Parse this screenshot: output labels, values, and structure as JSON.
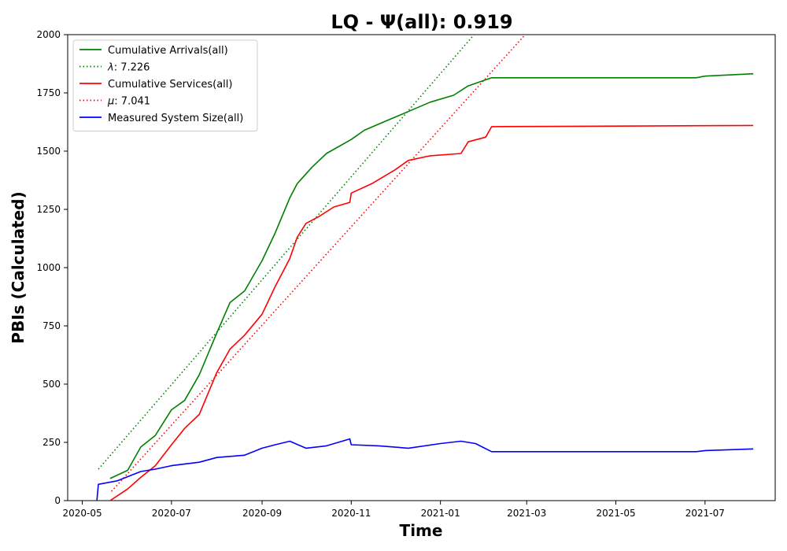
{
  "chart_data": {
    "type": "line",
    "title": "LQ -  Ψ(all): 0.919",
    "xlabel": "Time",
    "ylabel": "PBIs (Calculated)",
    "xlim": [
      "2020-04-21",
      "2021-08-18"
    ],
    "ylim": [
      0,
      2000
    ],
    "xticks": [
      "2020-05",
      "2020-07",
      "2020-09",
      "2020-11",
      "2021-01",
      "2021-03",
      "2021-05",
      "2021-07"
    ],
    "xtick_dates": [
      "2020-05-01",
      "2020-07-01",
      "2020-09-01",
      "2020-11-01",
      "2021-01-01",
      "2021-03-01",
      "2021-05-01",
      "2021-07-01"
    ],
    "yticks": [
      0,
      250,
      500,
      750,
      1000,
      1250,
      1500,
      1750,
      2000
    ],
    "grid": false,
    "legend_position": "upper-left",
    "series": [
      {
        "name": "Cumulative Arrivals(all)",
        "color": "#008000",
        "style": "solid",
        "points": [
          [
            "2020-05-20",
            95
          ],
          [
            "2020-06-01",
            130
          ],
          [
            "2020-06-10",
            230
          ],
          [
            "2020-06-20",
            280
          ],
          [
            "2020-07-01",
            390
          ],
          [
            "2020-07-10",
            430
          ],
          [
            "2020-07-20",
            540
          ],
          [
            "2020-08-01",
            720
          ],
          [
            "2020-08-10",
            850
          ],
          [
            "2020-08-20",
            900
          ],
          [
            "2020-09-01",
            1030
          ],
          [
            "2020-09-10",
            1150
          ],
          [
            "2020-09-20",
            1300
          ],
          [
            "2020-09-25",
            1360
          ],
          [
            "2020-10-05",
            1430
          ],
          [
            "2020-10-15",
            1490
          ],
          [
            "2020-11-01",
            1550
          ],
          [
            "2020-11-10",
            1590
          ],
          [
            "2020-11-25",
            1630
          ],
          [
            "2020-12-10",
            1670
          ],
          [
            "2020-12-25",
            1710
          ],
          [
            "2021-01-10",
            1740
          ],
          [
            "2021-01-20",
            1780
          ],
          [
            "2021-02-05",
            1815
          ],
          [
            "2021-06-25",
            1815
          ],
          [
            "2021-07-01",
            1822
          ],
          [
            "2021-08-03",
            1832
          ]
        ]
      },
      {
        "name": "λ: 7.226",
        "label_prefix": "λ",
        "label_value": ": 7.226",
        "color": "#008000",
        "style": "dotted",
        "points": [
          [
            "2020-05-12",
            135
          ],
          [
            "2021-01-24",
            2000
          ]
        ]
      },
      {
        "name": "Cumulative Services(all)",
        "color": "#ff0000",
        "style": "solid",
        "points": [
          [
            "2020-05-20",
            0
          ],
          [
            "2020-06-01",
            50
          ],
          [
            "2020-06-10",
            100
          ],
          [
            "2020-06-20",
            150
          ],
          [
            "2020-07-01",
            240
          ],
          [
            "2020-07-10",
            310
          ],
          [
            "2020-07-20",
            370
          ],
          [
            "2020-08-01",
            550
          ],
          [
            "2020-08-10",
            650
          ],
          [
            "2020-08-20",
            710
          ],
          [
            "2020-09-01",
            800
          ],
          [
            "2020-09-10",
            920
          ],
          [
            "2020-09-20",
            1040
          ],
          [
            "2020-09-25",
            1130
          ],
          [
            "2020-10-01",
            1190
          ],
          [
            "2020-10-10",
            1220
          ],
          [
            "2020-10-20",
            1260
          ],
          [
            "2020-10-31",
            1280
          ],
          [
            "2020-11-01",
            1320
          ],
          [
            "2020-11-15",
            1360
          ],
          [
            "2020-12-01",
            1420
          ],
          [
            "2020-12-10",
            1460
          ],
          [
            "2020-12-25",
            1480
          ],
          [
            "2021-01-15",
            1490
          ],
          [
            "2021-01-20",
            1540
          ],
          [
            "2021-02-01",
            1560
          ],
          [
            "2021-02-05",
            1605
          ],
          [
            "2021-08-03",
            1610
          ]
        ]
      },
      {
        "name": "μ: 7.041",
        "label_prefix": "μ",
        "label_value": ": 7.041",
        "color": "#ff0000",
        "style": "dotted",
        "points": [
          [
            "2020-05-21",
            40
          ],
          [
            "2021-02-28",
            2000
          ]
        ]
      },
      {
        "name": "Measured System Size(all)",
        "color": "#0000ff",
        "style": "solid",
        "points": [
          [
            "2020-05-11",
            0
          ],
          [
            "2020-05-12",
            70
          ],
          [
            "2020-05-25",
            85
          ],
          [
            "2020-06-10",
            125
          ],
          [
            "2020-06-20",
            135
          ],
          [
            "2020-07-01",
            150
          ],
          [
            "2020-07-20",
            165
          ],
          [
            "2020-08-01",
            185
          ],
          [
            "2020-08-20",
            195
          ],
          [
            "2020-09-01",
            225
          ],
          [
            "2020-09-10",
            240
          ],
          [
            "2020-09-20",
            255
          ],
          [
            "2020-10-01",
            225
          ],
          [
            "2020-10-15",
            235
          ],
          [
            "2020-10-31",
            265
          ],
          [
            "2020-11-01",
            240
          ],
          [
            "2020-11-20",
            235
          ],
          [
            "2020-12-10",
            225
          ],
          [
            "2021-01-01",
            245
          ],
          [
            "2021-01-15",
            255
          ],
          [
            "2021-01-25",
            245
          ],
          [
            "2021-02-05",
            210
          ],
          [
            "2021-06-25",
            210
          ],
          [
            "2021-07-01",
            215
          ],
          [
            "2021-08-03",
            222
          ]
        ]
      }
    ]
  }
}
